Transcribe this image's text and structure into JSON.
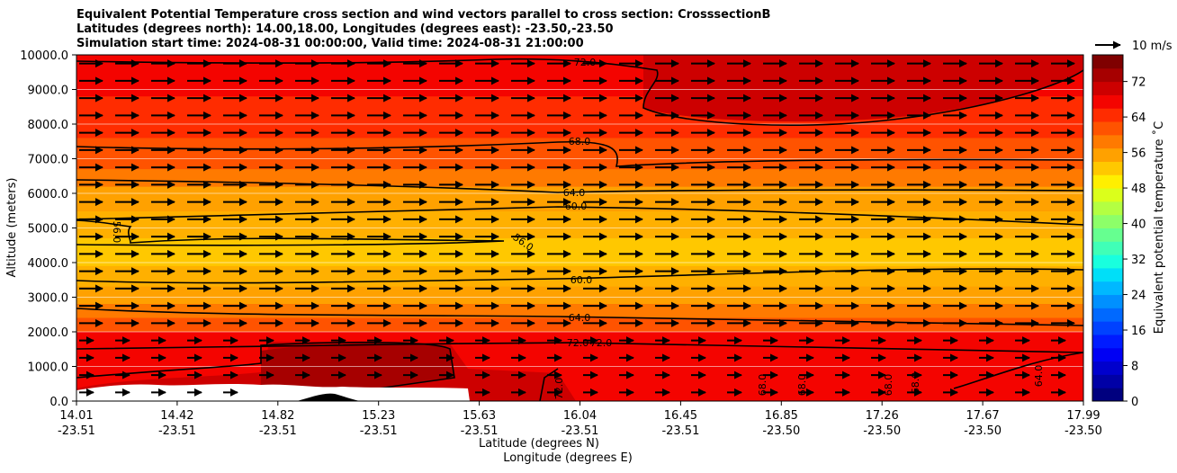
{
  "title_lines": [
    "Equivalent Potential Temperature cross section and wind vectors parallel to cross section: CrosssectionB",
    "Latitudes (degrees north): 14.00,18.00, Longitudes (degrees east): -23.50,-23.50",
    "Simulation start time: 2024-08-31 00:00:00, Valid time: 2024-08-31 21:00:00"
  ],
  "wind_key_label": "10 m/s",
  "chart_data": {
    "type": "heatmap",
    "title": "Equivalent Potential Temperature cross section and wind vectors parallel to cross section: CrosssectionB",
    "ylabel": "Altitude (meters)",
    "xlabel_lines": [
      "Latitude (degrees N)",
      "Longitude (degrees E)"
    ],
    "ylim": [
      0,
      10000
    ],
    "yticks": [
      "0.0",
      "1000.0",
      "2000.0",
      "3000.0",
      "4000.0",
      "5000.0",
      "6000.0",
      "7000.0",
      "8000.0",
      "9000.0",
      "10000.0"
    ],
    "xticks": [
      {
        "lat": "14.01",
        "lon": "-23.51"
      },
      {
        "lat": "14.42",
        "lon": "-23.51"
      },
      {
        "lat": "14.82",
        "lon": "-23.51"
      },
      {
        "lat": "15.23",
        "lon": "-23.51"
      },
      {
        "lat": "15.63",
        "lon": "-23.51"
      },
      {
        "lat": "16.04",
        "lon": "-23.51"
      },
      {
        "lat": "16.45",
        "lon": "-23.51"
      },
      {
        "lat": "16.85",
        "lon": "-23.50"
      },
      {
        "lat": "17.26",
        "lon": "-23.50"
      },
      {
        "lat": "17.67",
        "lon": "-23.50"
      },
      {
        "lat": "17.99",
        "lon": "-23.50"
      }
    ],
    "colorbar": {
      "label": "Equivalent potential temperature $^\\circ$C",
      "label_display": "Equivalent potential temperature ˚C",
      "range": [
        0,
        78
      ],
      "ticks": [
        "0",
        "8",
        "16",
        "24",
        "32",
        "40",
        "48",
        "56",
        "64",
        "72"
      ],
      "colors": [
        "#00007f",
        "#0000a6",
        "#0000cd",
        "#0000f4",
        "#001bff",
        "#0042ff",
        "#0069ff",
        "#0090ff",
        "#00b8ff",
        "#00dff8",
        "#19ffde",
        "#40ffb7",
        "#66ff90",
        "#8dff69",
        "#b4ff42",
        "#dbff1b",
        "#ffef00",
        "#ffc800",
        "#ffa100",
        "#ff7a00",
        "#ff5300",
        "#ff2c00",
        "#f40400",
        "#cd0000",
        "#a60000",
        "#7f0000"
      ]
    },
    "contour_labels": [
      "72.0",
      "68.0",
      "64.0",
      "60.0",
      "56.0",
      "60.0",
      "64.0",
      "72.0",
      "72.0",
      "72.0",
      "68.0",
      "68.0",
      "68.0",
      "68.0",
      "64.0",
      "56.0"
    ],
    "wind": {
      "direction": "parallel to cross section, eastward/northward",
      "reference_speed": "10 m/s"
    }
  }
}
